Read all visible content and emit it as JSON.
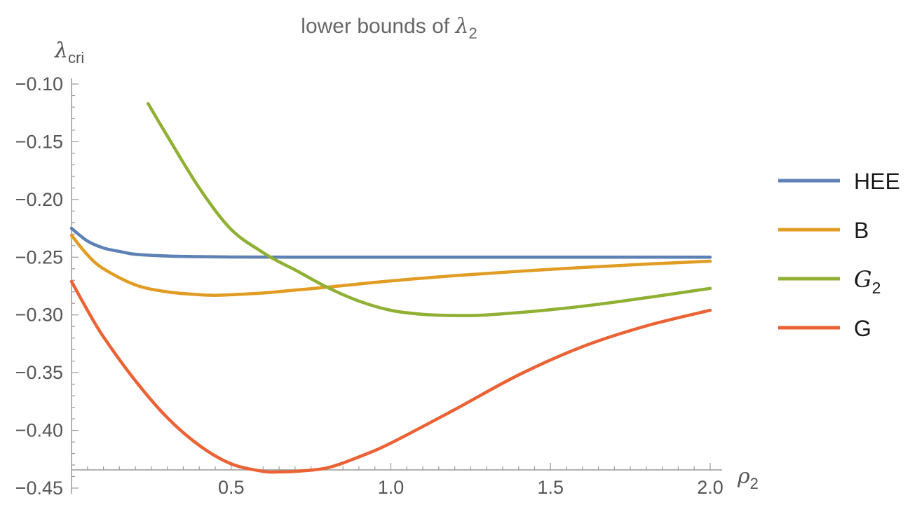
{
  "chart_data": {
    "type": "line",
    "title_prefix": "lower bounds of ",
    "title_symbol": "λ",
    "title_sub": "2",
    "ylabel_symbol": "λ",
    "ylabel_sub": "cri",
    "xlabel_symbol": "ρ",
    "xlabel_sub": "2",
    "xlim": [
      0.0,
      2.0
    ],
    "ylim": [
      -0.45,
      -0.1
    ],
    "x_ticks": [
      0.5,
      1.0,
      1.5,
      2.0
    ],
    "x_tick_labels": [
      "0.5",
      "1.0",
      "1.5",
      "2.0"
    ],
    "y_ticks": [
      -0.1,
      -0.15,
      -0.2,
      -0.25,
      -0.3,
      -0.35,
      -0.4,
      -0.45
    ],
    "y_tick_labels": [
      "−0.10",
      "−0.15",
      "−0.20",
      "−0.25",
      "−0.30",
      "−0.35",
      "−0.40",
      "−0.45"
    ],
    "grid": false,
    "legend_position": "right",
    "series": [
      {
        "name": "HEE",
        "color": "#5e81b5",
        "x": [
          0.0,
          0.05,
          0.1,
          0.15,
          0.2,
          0.3,
          0.4,
          0.5,
          0.7,
          1.0,
          1.5,
          2.0
        ],
        "y": [
          -0.225,
          -0.236,
          -0.242,
          -0.245,
          -0.2475,
          -0.249,
          -0.2495,
          -0.2498,
          -0.25,
          -0.25,
          -0.25,
          -0.25
        ]
      },
      {
        "name": "B",
        "color": "#e19c24",
        "x": [
          0.0,
          0.05,
          0.1,
          0.2,
          0.3,
          0.4,
          0.45,
          0.5,
          0.6,
          0.7,
          0.8,
          1.0,
          1.2,
          1.5,
          1.8,
          2.0
        ],
        "y": [
          -0.231,
          -0.248,
          -0.26,
          -0.274,
          -0.28,
          -0.2825,
          -0.283,
          -0.2825,
          -0.281,
          -0.2785,
          -0.276,
          -0.2705,
          -0.266,
          -0.2605,
          -0.256,
          -0.2535
        ]
      },
      {
        "name": "G₂",
        "name_symbol": "G",
        "name_sub": "2",
        "color": "#8fb032",
        "x": [
          0.24,
          0.3,
          0.4,
          0.5,
          0.6,
          0.65,
          0.7,
          0.8,
          0.9,
          1.0,
          1.1,
          1.2,
          1.3,
          1.5,
          1.7,
          2.0
        ],
        "y": [
          -0.117,
          -0.145,
          -0.19,
          -0.226,
          -0.246,
          -0.254,
          -0.261,
          -0.276,
          -0.288,
          -0.296,
          -0.2995,
          -0.3005,
          -0.3,
          -0.2955,
          -0.289,
          -0.277
        ]
      },
      {
        "name": "G",
        "color": "#eb6235",
        "x": [
          0.0,
          0.05,
          0.1,
          0.2,
          0.3,
          0.4,
          0.5,
          0.6,
          0.65,
          0.7,
          0.8,
          0.9,
          1.0,
          1.2,
          1.4,
          1.6,
          1.8,
          2.0
        ],
        "y": [
          -0.271,
          -0.296,
          -0.319,
          -0.357,
          -0.389,
          -0.413,
          -0.429,
          -0.4355,
          -0.436,
          -0.4355,
          -0.4325,
          -0.423,
          -0.411,
          -0.382,
          -0.352,
          -0.3275,
          -0.3095,
          -0.296
        ]
      }
    ]
  }
}
